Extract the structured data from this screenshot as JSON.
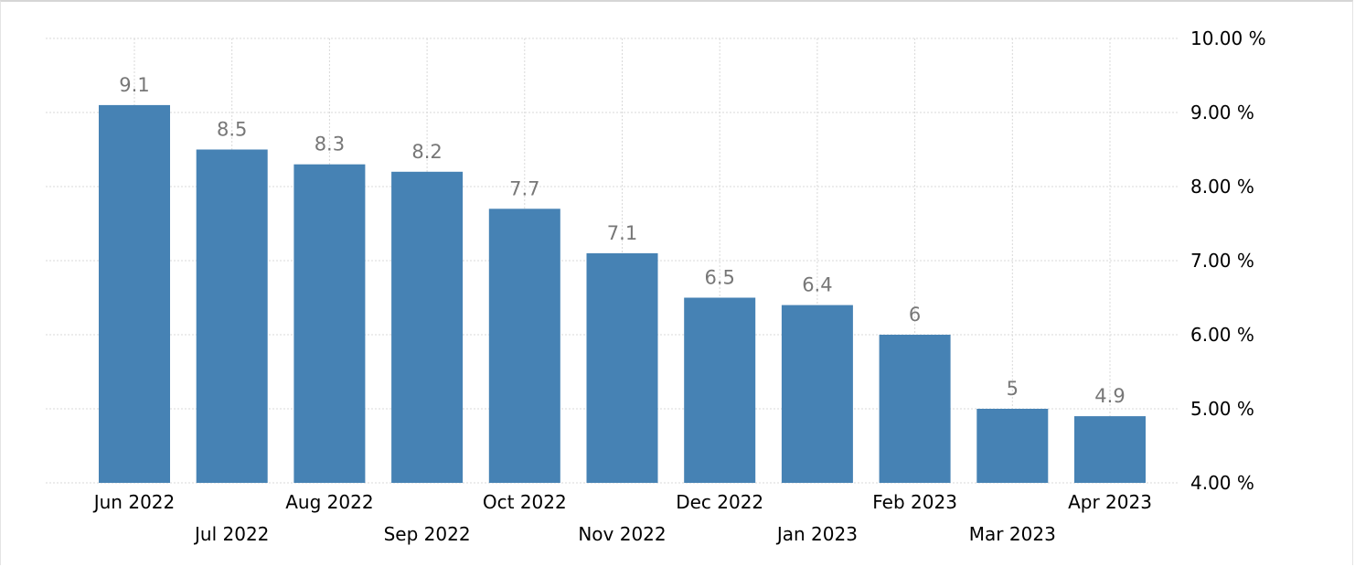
{
  "chart_data": {
    "type": "bar",
    "title": "",
    "xlabel": "",
    "ylabel": "",
    "categories": [
      "Jun 2022",
      "Jul 2022",
      "Aug 2022",
      "Sep 2022",
      "Oct 2022",
      "Nov 2022",
      "Dec 2022",
      "Jan 2023",
      "Feb 2023",
      "Mar 2023",
      "Apr 2023"
    ],
    "values": [
      9.1,
      8.5,
      8.3,
      8.2,
      7.7,
      7.1,
      6.5,
      6.4,
      6,
      5,
      4.9
    ],
    "value_labels": [
      "9.1",
      "8.5",
      "8.3",
      "8.2",
      "7.7",
      "7.1",
      "6.5",
      "6.4",
      "6",
      "5",
      "4.9"
    ],
    "ylim": [
      4,
      10
    ],
    "yticks": [
      4,
      5,
      6,
      7,
      8,
      9,
      10
    ],
    "ytick_labels": [
      "4.00 %",
      "5.00 %",
      "6.00 %",
      "7.00 %",
      "8.00 %",
      "9.00 %",
      "10.00 %"
    ],
    "y_axis_position": "right",
    "grid": true,
    "bar_color": "#4682b4",
    "label_color": "#777777"
  }
}
